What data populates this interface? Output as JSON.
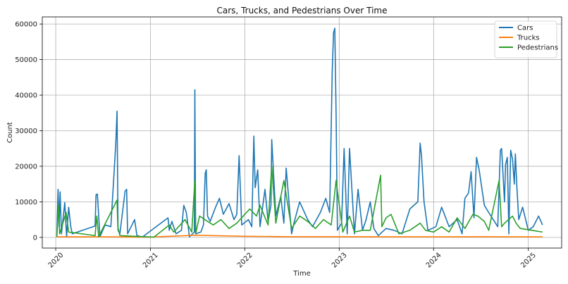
{
  "chart_data": {
    "type": "line",
    "title": "Cars, Trucks, and Pedestrians Over Time",
    "xlabel": "Time",
    "ylabel": "Count",
    "xlim": [
      "2019-11-10",
      "2025-05-10"
    ],
    "ylim": [
      -3000,
      62000
    ],
    "x_ticks": [
      "2020",
      "2021",
      "2022",
      "2023",
      "2024",
      "2025"
    ],
    "x_tick_dates": [
      "2020-01-01",
      "2021-01-01",
      "2022-01-01",
      "2023-01-01",
      "2024-01-01",
      "2025-01-01"
    ],
    "y_ticks": [
      0,
      10000,
      20000,
      30000,
      40000,
      50000,
      60000
    ],
    "y_tick_labels": [
      "0",
      "10000",
      "20000",
      "30000",
      "40000",
      "50000",
      "60000"
    ],
    "grid": true,
    "legend_position": "top-right",
    "series": [
      {
        "name": "Cars",
        "color": "#1f77b4",
        "x": [
          "2020-01-05",
          "2020-01-10",
          "2020-01-14",
          "2020-01-18",
          "2020-01-23",
          "2020-02-05",
          "2020-02-12",
          "2020-02-20",
          "2020-02-28",
          "2020-03-05",
          "2020-06-01",
          "2020-06-05",
          "2020-06-10",
          "2020-06-20",
          "2020-07-10",
          "2020-08-01",
          "2020-08-20",
          "2020-08-25",
          "2020-08-29",
          "2020-09-05",
          "2020-09-25",
          "2020-10-01",
          "2020-10-05",
          "2020-10-15",
          "2020-11-01",
          "2020-11-10",
          "2020-12-01",
          "2021-03-10",
          "2021-03-15",
          "2021-03-25",
          "2021-04-10",
          "2021-05-01",
          "2021-05-10",
          "2021-05-20",
          "2021-06-01",
          "2021-06-20",
          "2021-06-22",
          "2021-06-25",
          "2021-07-15",
          "2021-07-25",
          "2021-08-01",
          "2021-08-05",
          "2021-08-10",
          "2021-08-20",
          "2021-09-10",
          "2021-09-25",
          "2021-10-10",
          "2021-11-01",
          "2021-11-20",
          "2021-12-01",
          "2021-12-10",
          "2021-12-20",
          "2022-01-15",
          "2022-01-28",
          "2022-02-05",
          "2022-02-10",
          "2022-02-20",
          "2022-03-01",
          "2022-03-20",
          "2022-04-01",
          "2022-04-12",
          "2022-04-15",
          "2022-05-01",
          "2022-05-20",
          "2022-06-01",
          "2022-06-10",
          "2022-07-01",
          "2022-07-10",
          "2022-08-01",
          "2022-09-01",
          "2022-09-20",
          "2022-10-20",
          "2022-11-10",
          "2022-11-25",
          "2022-12-05",
          "2022-12-10",
          "2022-12-15",
          "2022-12-20",
          "2022-12-25",
          "2023-01-10",
          "2023-01-20",
          "2023-02-01",
          "2023-02-10",
          "2023-03-01",
          "2023-03-15",
          "2023-04-01",
          "2023-04-15",
          "2023-05-01",
          "2023-05-15",
          "2023-06-01",
          "2023-07-01",
          "2023-08-01",
          "2023-09-01",
          "2023-10-01",
          "2023-11-01",
          "2023-11-10",
          "2023-11-15",
          "2023-11-25",
          "2023-12-10",
          "2024-01-10",
          "2024-02-01",
          "2024-03-01",
          "2024-04-01",
          "2024-04-20",
          "2024-05-01",
          "2024-05-15",
          "2024-05-25",
          "2024-06-05",
          "2024-06-15",
          "2024-06-25",
          "2024-07-15",
          "2024-08-01",
          "2024-09-05",
          "2024-09-15",
          "2024-09-20",
          "2024-10-01",
          "2024-10-05",
          "2024-10-12",
          "2024-10-18",
          "2024-10-25",
          "2024-11-01",
          "2024-11-08",
          "2024-11-12",
          "2024-11-18",
          "2024-11-25",
          "2024-12-10",
          "2025-01-01",
          "2025-01-20",
          "2025-02-10",
          "2025-02-25"
        ],
        "y": [
          200,
          13500,
          3000,
          12800,
          1000,
          9800,
          200,
          8500,
          3000,
          1000,
          3200,
          12000,
          12200,
          200,
          3500,
          3000,
          26000,
          35500,
          2000,
          1000,
          13000,
          13500,
          1000,
          2500,
          5000,
          500,
          100,
          5500,
          2000,
          4500,
          1000,
          2000,
          9000,
          7000,
          200,
          1500,
          41500,
          1000,
          1500,
          3500,
          18000,
          19000,
          6000,
          4500,
          8500,
          11000,
          6500,
          9500,
          5000,
          6500,
          23000,
          3500,
          5000,
          3000,
          28500,
          14000,
          19000,
          3000,
          13500,
          4500,
          9000,
          27500,
          6000,
          11500,
          4000,
          19500,
          1000,
          4000,
          10000,
          5000,
          3000,
          7000,
          11000,
          7000,
          46500,
          57500,
          58800,
          35000,
          2000,
          4000,
          25000,
          1000,
          25000,
          1000,
          13500,
          2000,
          5000,
          10000,
          2500,
          500,
          2500,
          2000,
          1000,
          8000,
          10000,
          26500,
          23000,
          10000,
          2000,
          3000,
          8500,
          3000,
          5000,
          1000,
          11000,
          12500,
          18500,
          5500,
          22500,
          19000,
          9000,
          7000,
          3000,
          24500,
          25000,
          10000,
          20500,
          22500,
          1000,
          24500,
          22000,
          15000,
          23500,
          14000,
          5000,
          8500,
          2000,
          3000,
          6000,
          3500
        ]
      },
      {
        "name": "Trucks",
        "color": "#ff7f0e",
        "x": [
          "2020-01-05",
          "2020-06-01",
          "2021-01-01",
          "2021-06-25",
          "2022-01-01",
          "2022-07-01",
          "2023-01-01",
          "2023-07-01",
          "2024-01-01",
          "2024-07-01",
          "2025-01-01",
          "2025-02-25"
        ],
        "y": [
          150,
          150,
          100,
          600,
          300,
          200,
          200,
          150,
          150,
          200,
          150,
          150
        ]
      },
      {
        "name": "Pedestrians",
        "color": "#2ca02c",
        "x": [
          "2020-01-05",
          "2020-01-12",
          "2020-01-16",
          "2020-02-10",
          "2020-02-20",
          "2020-06-01",
          "2020-06-08",
          "2020-06-15",
          "2020-08-25",
          "2020-08-28",
          "2020-09-05",
          "2020-11-01",
          "2021-01-15",
          "2021-03-15",
          "2021-04-01",
          "2021-05-15",
          "2021-06-10",
          "2021-06-22",
          "2021-06-25",
          "2021-07-10",
          "2021-08-10",
          "2021-09-01",
          "2021-10-01",
          "2021-11-01",
          "2021-12-01",
          "2022-01-20",
          "2022-02-15",
          "2022-03-01",
          "2022-04-01",
          "2022-04-15",
          "2022-05-01",
          "2022-06-01",
          "2022-07-01",
          "2022-08-01",
          "2022-09-01",
          "2022-10-01",
          "2022-11-01",
          "2022-12-01",
          "2022-12-20",
          "2023-01-15",
          "2023-02-10",
          "2023-03-01",
          "2023-04-01",
          "2023-05-01",
          "2023-06-10",
          "2023-06-15",
          "2023-07-01",
          "2023-07-20",
          "2023-08-20",
          "2023-10-01",
          "2023-11-10",
          "2023-12-01",
          "2024-01-01",
          "2024-02-01",
          "2024-03-01",
          "2024-04-01",
          "2024-05-01",
          "2024-06-01",
          "2024-06-20",
          "2024-07-15",
          "2024-08-01",
          "2024-09-10",
          "2024-09-20",
          "2024-10-01",
          "2024-11-01",
          "2024-11-15",
          "2024-12-01",
          "2025-01-15",
          "2025-02-25"
        ],
        "y": [
          200,
          9000,
          1000,
          7000,
          1500,
          500,
          6000,
          200,
          10500,
          3000,
          500,
          300,
          100,
          3500,
          1500,
          5000,
          1500,
          16000,
          1000,
          6000,
          4500,
          3500,
          5000,
          2500,
          4000,
          8000,
          6000,
          9000,
          3500,
          20000,
          4000,
          16000,
          2500,
          6000,
          4500,
          2500,
          5000,
          3500,
          16000,
          1500,
          6000,
          1500,
          2000,
          2000,
          17500,
          3000,
          5500,
          6500,
          1000,
          2000,
          4000,
          2000,
          1500,
          3000,
          1500,
          5500,
          2500,
          6500,
          6000,
          4500,
          2000,
          16000,
          3000,
          4000,
          6000,
          4000,
          2500,
          2000,
          1500
        ]
      }
    ]
  }
}
